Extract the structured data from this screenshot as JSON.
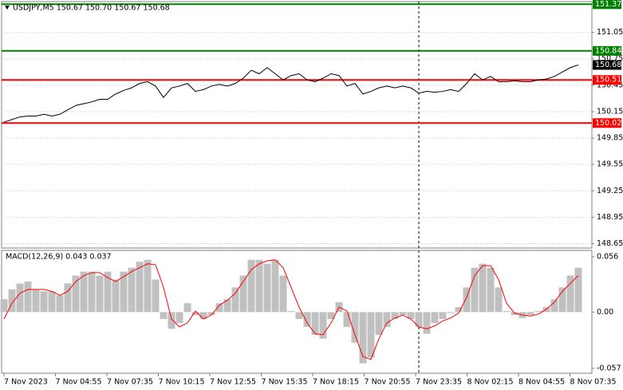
{
  "chart_data": [
    {
      "type": "line",
      "title": "USDJPY,M5  150.67 150.70 150.67 150.68",
      "series": [
        {
          "color": "#000000",
          "values": [
            150.03,
            150.06,
            150.09,
            150.1,
            150.1,
            150.12,
            150.1,
            150.12,
            150.17,
            150.22,
            150.24,
            150.26,
            150.29,
            150.29,
            150.35,
            150.39,
            150.42,
            150.47,
            150.49,
            150.44,
            150.31,
            150.42,
            150.44,
            150.47,
            150.38,
            150.4,
            150.44,
            150.46,
            150.44,
            150.47,
            150.53,
            150.62,
            150.58,
            150.65,
            150.58,
            150.51,
            150.56,
            150.58,
            150.51,
            150.49,
            150.53,
            150.58,
            150.56,
            150.44,
            150.47,
            150.35,
            150.38,
            150.42,
            150.44,
            150.42,
            150.44,
            150.42,
            150.36,
            150.38,
            150.37,
            150.38,
            150.4,
            150.38,
            150.47,
            150.58,
            150.51,
            150.55,
            150.49,
            150.49,
            150.5,
            150.49,
            150.49,
            150.51,
            150.52,
            150.55,
            150.6,
            150.65,
            150.68
          ]
        }
      ],
      "ylim": [
        148.6,
        151.4
      ],
      "yticks": [
        148.65,
        148.95,
        149.25,
        149.55,
        149.85,
        150.15,
        150.45,
        150.75,
        151.05
      ],
      "grid": true,
      "levels": [
        {
          "value": 151.37,
          "color": "#008000"
        },
        {
          "value": 150.84,
          "color": "#008000"
        },
        {
          "value": 150.51,
          "color": "#ff0000"
        },
        {
          "value": 150.02,
          "color": "#ff0000"
        }
      ],
      "last_price": {
        "value": 150.68,
        "color": "#000000"
      }
    },
    {
      "type": "macd",
      "title": "MACD(12,26,9) 0.043 0.037",
      "series": [
        {
          "color": "#c0c0c0",
          "values": [
            0.013,
            0.023,
            0.029,
            0.031,
            0.023,
            0.021,
            0.021,
            0.017,
            0.029,
            0.037,
            0.041,
            0.041,
            0.037,
            0.041,
            0.033,
            0.041,
            0.045,
            0.051,
            0.053,
            0.033,
            -0.007,
            -0.017,
            -0.011,
            0.009,
            -0.003,
            -0.007,
            -0.003,
            0.009,
            0.013,
            0.025,
            0.037,
            0.053,
            0.053,
            0.049,
            0.053,
            0.037,
            0.001,
            -0.007,
            -0.015,
            -0.023,
            -0.027,
            -0.007,
            0.01,
            -0.015,
            -0.031,
            -0.052,
            -0.046,
            -0.023,
            -0.015,
            -0.007,
            -0.003,
            -0.007,
            -0.015,
            -0.022,
            -0.011,
            -0.007,
            -0.001,
            0.005,
            0.025,
            0.045,
            0.049,
            0.045,
            0.025,
            0.001,
            -0.003,
            -0.006,
            -0.003,
            0.001,
            0.005,
            0.013,
            0.025,
            0.037,
            0.045
          ]
        },
        {
          "color": "#ff0000",
          "values": [
            -0.007,
            0.009,
            0.019,
            0.023,
            0.023,
            0.023,
            0.021,
            0.017,
            0.021,
            0.031,
            0.037,
            0.04,
            0.04,
            0.035,
            0.031,
            0.036,
            0.041,
            0.045,
            0.049,
            0.048,
            0.025,
            -0.007,
            -0.015,
            -0.011,
            0.001,
            -0.007,
            -0.003,
            0.007,
            0.012,
            0.019,
            0.031,
            0.043,
            0.049,
            0.052,
            0.053,
            0.045,
            0.025,
            0.005,
            -0.011,
            -0.022,
            -0.023,
            -0.011,
            0.005,
            0.001,
            -0.023,
            -0.045,
            -0.048,
            -0.027,
            -0.011,
            -0.006,
            -0.003,
            -0.007,
            -0.015,
            -0.017,
            -0.014,
            -0.009,
            -0.006,
            -0.001,
            0.015,
            0.037,
            0.047,
            0.047,
            0.033,
            0.009,
            -0.001,
            -0.003,
            -0.004,
            -0.002,
            0.003,
            0.01,
            0.021,
            0.029,
            0.037
          ]
        }
      ],
      "ylim": [
        -0.062,
        0.0625
      ],
      "yticks": [
        0.056,
        {
          "value": 0,
          "label": "0.00"
        },
        -0.057
      ],
      "xtick_labels": [
        "7 Nov 2023",
        "7 Nov 04:55",
        "7 Nov 07:35",
        "7 Nov 10:15",
        "7 Nov 12:55",
        "7 Nov 15:35",
        "7 Nov 18:15",
        "7 Nov 20:55",
        "7 Nov 23:35",
        "8 Nov 02:15",
        "8 Nov 04:55",
        "8 Nov 07:35"
      ]
    }
  ]
}
